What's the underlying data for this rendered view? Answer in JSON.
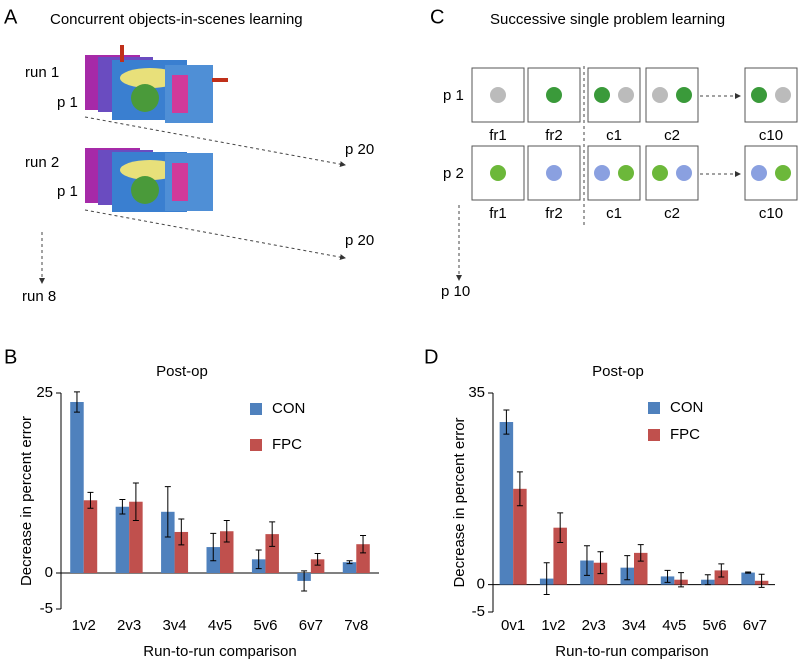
{
  "panels": {
    "A": {
      "letter": "A",
      "title": "Concurrent objects-in-scenes learning",
      "run1": "run 1",
      "p1a": "p 1",
      "p20a": "p 20",
      "run2": "run 2",
      "p1b": "p 1",
      "p20b": "p 20",
      "run8": "run 8"
    },
    "C": {
      "letter": "C",
      "title": "Successive single problem learning",
      "row1": "p 1",
      "row2": "p 2",
      "p10": "p 10",
      "labels1": [
        "fr1",
        "fr2",
        "c1",
        "c2",
        "c10"
      ],
      "labels2": [
        "fr1",
        "fr2",
        "c1",
        "c2",
        "c10"
      ]
    }
  },
  "chart_data": [
    {
      "type": "bar",
      "panel": "B",
      "title": "Post-op",
      "ylabel": "Decrease in percent error",
      "xlabel": "Run-to-run comparison",
      "categories": [
        "1v2",
        "2v3",
        "3v4",
        "4v5",
        "5v6",
        "6v7",
        "7v8"
      ],
      "series": [
        {
          "name": "CON",
          "color": "#4f81bd",
          "values": [
            23.75,
            9.2,
            8.5,
            3.6,
            1.9,
            -1.1,
            1.5
          ],
          "errors": [
            1.4,
            1.0,
            3.5,
            1.9,
            1.3,
            1.4,
            0.2
          ]
        },
        {
          "name": "FPC",
          "color": "#c0504d",
          "values": [
            10.1,
            9.9,
            5.7,
            5.8,
            5.4,
            1.9,
            4.0
          ],
          "errors": [
            1.1,
            2.6,
            1.8,
            1.5,
            1.7,
            0.8,
            1.2
          ]
        }
      ],
      "ylim": [
        -5,
        25
      ],
      "yticks": [
        -5,
        0,
        25
      ],
      "legend": "upper right"
    },
    {
      "type": "bar",
      "panel": "D",
      "title": "Post-op",
      "ylabel": "Decrease in percent error",
      "xlabel": "Run-to-run comparison",
      "categories": [
        "0v1",
        "1v2",
        "2v3",
        "3v4",
        "4v5",
        "5v6",
        "6v7"
      ],
      "series": [
        {
          "name": "CON",
          "color": "#4f81bd",
          "values": [
            29.7,
            1.1,
            4.4,
            3.1,
            1.5,
            0.9,
            2.2
          ],
          "errors": [
            2.2,
            2.9,
            2.7,
            2.2,
            1.1,
            0.9,
            0.1
          ]
        },
        {
          "name": "FPC",
          "color": "#c0504d",
          "values": [
            17.5,
            10.4,
            4.0,
            5.8,
            0.9,
            2.6,
            0.7
          ],
          "errors": [
            3.1,
            2.7,
            2.0,
            1.5,
            1.3,
            1.2,
            1.2
          ]
        }
      ],
      "ylim": [
        -5,
        35
      ],
      "yticks": [
        -5,
        0,
        35
      ],
      "legend": "upper right"
    }
  ]
}
